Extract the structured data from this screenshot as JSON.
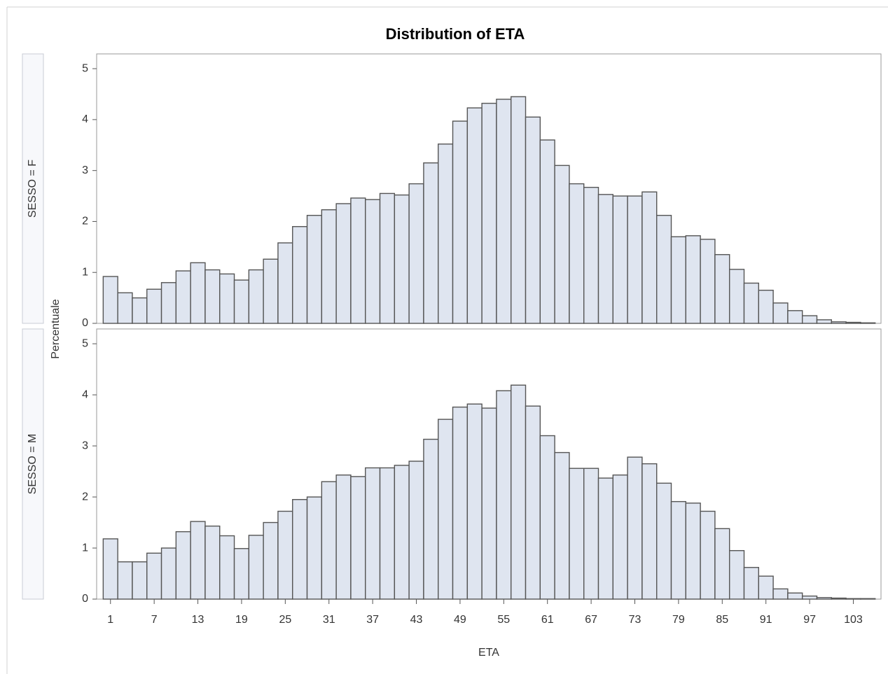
{
  "chart_data": {
    "type": "histogram",
    "title": "Distribution of ETA",
    "x_label": "ETA",
    "y_label": "Percentuale",
    "color": "#dfe5f0",
    "edge_color": "#555555",
    "bins": [
      0,
      2,
      4,
      6,
      8,
      10,
      12,
      14,
      16,
      18,
      20,
      22,
      24,
      26,
      28,
      30,
      32,
      34,
      36,
      38,
      40,
      42,
      44,
      46,
      48,
      50,
      52,
      54,
      56,
      58,
      60,
      62,
      64,
      66,
      68,
      70,
      72,
      74,
      76,
      78,
      80,
      82,
      84,
      86,
      88,
      90,
      92,
      94,
      96,
      98,
      100,
      102,
      104,
      106
    ],
    "xlim": [
      -0.9,
      106.8
    ],
    "xticks": [
      1,
      7,
      13,
      19,
      25,
      31,
      37,
      43,
      49,
      55,
      61,
      67,
      73,
      79,
      85,
      91,
      97,
      103
    ],
    "ylim": [
      0,
      5.29
    ],
    "yticks": [
      0,
      1,
      2,
      3,
      4,
      5
    ],
    "series": [
      {
        "name": "SESSO = F",
        "values": [
          0.92,
          0.6,
          0.5,
          0.67,
          0.8,
          1.03,
          1.19,
          1.05,
          0.97,
          0.85,
          1.05,
          1.26,
          1.58,
          1.9,
          2.12,
          2.23,
          2.35,
          2.46,
          2.43,
          2.55,
          2.52,
          2.74,
          3.15,
          3.52,
          3.97,
          4.23,
          4.32,
          4.4,
          4.45,
          4.05,
          3.6,
          3.1,
          2.74,
          2.67,
          2.53,
          2.5,
          2.5,
          2.58,
          2.12,
          1.7,
          1.72,
          1.65,
          1.35,
          1.06,
          0.79,
          0.65,
          0.4,
          0.25,
          0.15,
          0.07,
          0.03,
          0.02,
          0.01
        ]
      },
      {
        "name": "SESSO = M",
        "values": [
          1.18,
          0.73,
          0.73,
          0.9,
          1.0,
          1.32,
          1.52,
          1.43,
          1.24,
          0.99,
          1.25,
          1.5,
          1.72,
          1.95,
          2.0,
          2.3,
          2.43,
          2.4,
          2.57,
          2.57,
          2.62,
          2.7,
          3.13,
          3.52,
          3.76,
          3.82,
          3.74,
          4.08,
          4.19,
          3.78,
          3.2,
          2.87,
          2.56,
          2.56,
          2.37,
          2.43,
          2.78,
          2.65,
          2.27,
          1.91,
          1.88,
          1.72,
          1.38,
          0.95,
          0.62,
          0.45,
          0.2,
          0.12,
          0.06,
          0.03,
          0.02,
          0.01,
          0.01
        ]
      }
    ]
  }
}
